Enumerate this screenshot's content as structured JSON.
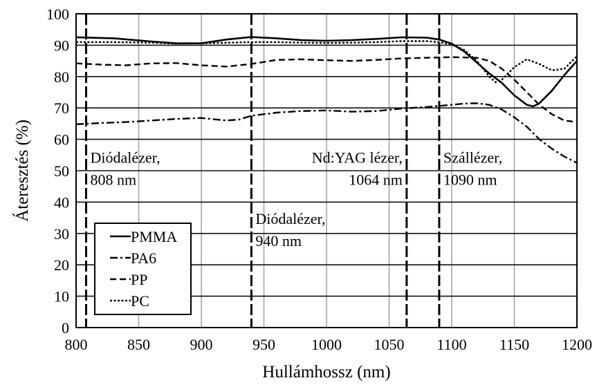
{
  "chart_data": {
    "type": "line",
    "xlabel": "Hullámhossz (nm)",
    "ylabel": "Áteresztés (%)",
    "xlim": [
      800,
      1200
    ],
    "ylim": [
      0,
      100
    ],
    "xticks": [
      "800",
      "850",
      "900",
      "950",
      "1000",
      "1050",
      "1100",
      "1150",
      "1200"
    ],
    "yticks": [
      "0",
      "10",
      "20",
      "30",
      "40",
      "50",
      "60",
      "70",
      "80",
      "90",
      "100"
    ],
    "grid": true,
    "legend_position": "bottom-left",
    "series": [
      {
        "name": "PMMA",
        "style": "solid",
        "color": "#000000",
        "x": [
          800,
          830,
          860,
          880,
          900,
          920,
          940,
          960,
          980,
          1000,
          1020,
          1040,
          1060,
          1080,
          1090,
          1100,
          1110,
          1120,
          1130,
          1140,
          1150,
          1160,
          1165,
          1170,
          1180,
          1190,
          1200
        ],
        "y": [
          92.5,
          92.2,
          91.2,
          90.6,
          90.6,
          91.8,
          92.6,
          92.2,
          91.6,
          91.4,
          91.6,
          92.0,
          92.5,
          92.4,
          91.8,
          90.5,
          88.0,
          84.5,
          81.0,
          78.0,
          74.0,
          71.0,
          70.5,
          71.5,
          75.5,
          80.5,
          85.0
        ]
      },
      {
        "name": "PA6",
        "style": "dash-dot",
        "color": "#000000",
        "x": [
          800,
          820,
          840,
          860,
          880,
          900,
          920,
          930,
          940,
          960,
          980,
          1000,
          1020,
          1040,
          1060,
          1080,
          1100,
          1110,
          1120,
          1130,
          1140,
          1150,
          1160,
          1170,
          1180,
          1190,
          1200
        ],
        "y": [
          64.8,
          65.2,
          65.5,
          66.0,
          66.5,
          66.8,
          66.0,
          66.3,
          67.5,
          68.5,
          69.0,
          69.2,
          68.8,
          69.0,
          69.8,
          70.3,
          71.0,
          71.4,
          71.5,
          71.0,
          69.5,
          67.0,
          64.0,
          60.0,
          57.0,
          54.5,
          52.5
        ]
      },
      {
        "name": "PP",
        "style": "dashed",
        "color": "#000000",
        "x": [
          800,
          820,
          840,
          860,
          880,
          900,
          920,
          940,
          960,
          980,
          1000,
          1020,
          1040,
          1060,
          1080,
          1100,
          1120,
          1130,
          1140,
          1150,
          1160,
          1170,
          1180,
          1190,
          1200
        ],
        "y": [
          84.2,
          83.8,
          83.6,
          84.2,
          84.3,
          83.6,
          83.2,
          84.0,
          85.3,
          85.5,
          85.2,
          85.0,
          85.3,
          85.8,
          86.0,
          86.2,
          86.0,
          85.0,
          82.5,
          79.0,
          75.0,
          71.0,
          68.0,
          66.0,
          65.5
        ]
      },
      {
        "name": "PC",
        "style": "dotted",
        "color": "#000000",
        "x": [
          800,
          830,
          860,
          880,
          900,
          920,
          940,
          960,
          980,
          1000,
          1020,
          1040,
          1060,
          1080,
          1090,
          1100,
          1110,
          1120,
          1130,
          1135,
          1140,
          1150,
          1160,
          1170,
          1180,
          1190,
          1200
        ],
        "y": [
          91.0,
          91.0,
          90.8,
          90.5,
          90.6,
          90.8,
          91.0,
          91.0,
          90.8,
          90.7,
          90.8,
          91.0,
          91.3,
          91.3,
          91.0,
          90.2,
          88.5,
          85.0,
          80.0,
          78.2,
          79.0,
          83.0,
          85.5,
          84.0,
          82.0,
          82.5,
          86.5
        ]
      }
    ],
    "vlines": [
      808,
      940,
      1064,
      1090
    ],
    "annotations": [
      {
        "lines": [
          "Diódalézer,",
          "808 nm"
        ],
        "x": 808,
        "anchor": "start",
        "y_lines": [
          52.5,
          45.5
        ]
      },
      {
        "lines": [
          "Diódalézer,",
          "940 nm"
        ],
        "x": 940,
        "anchor": "start",
        "y_lines": [
          33.0,
          26.0
        ]
      },
      {
        "lines": [
          "Nd:YAG lézer,",
          "1064 nm"
        ],
        "x": 1064,
        "anchor": "end",
        "y_lines": [
          52.5,
          45.5
        ]
      },
      {
        "lines": [
          "Szállézer,",
          "1090 nm"
        ],
        "x": 1090,
        "anchor": "start",
        "y_lines": [
          52.5,
          45.5
        ]
      }
    ]
  }
}
